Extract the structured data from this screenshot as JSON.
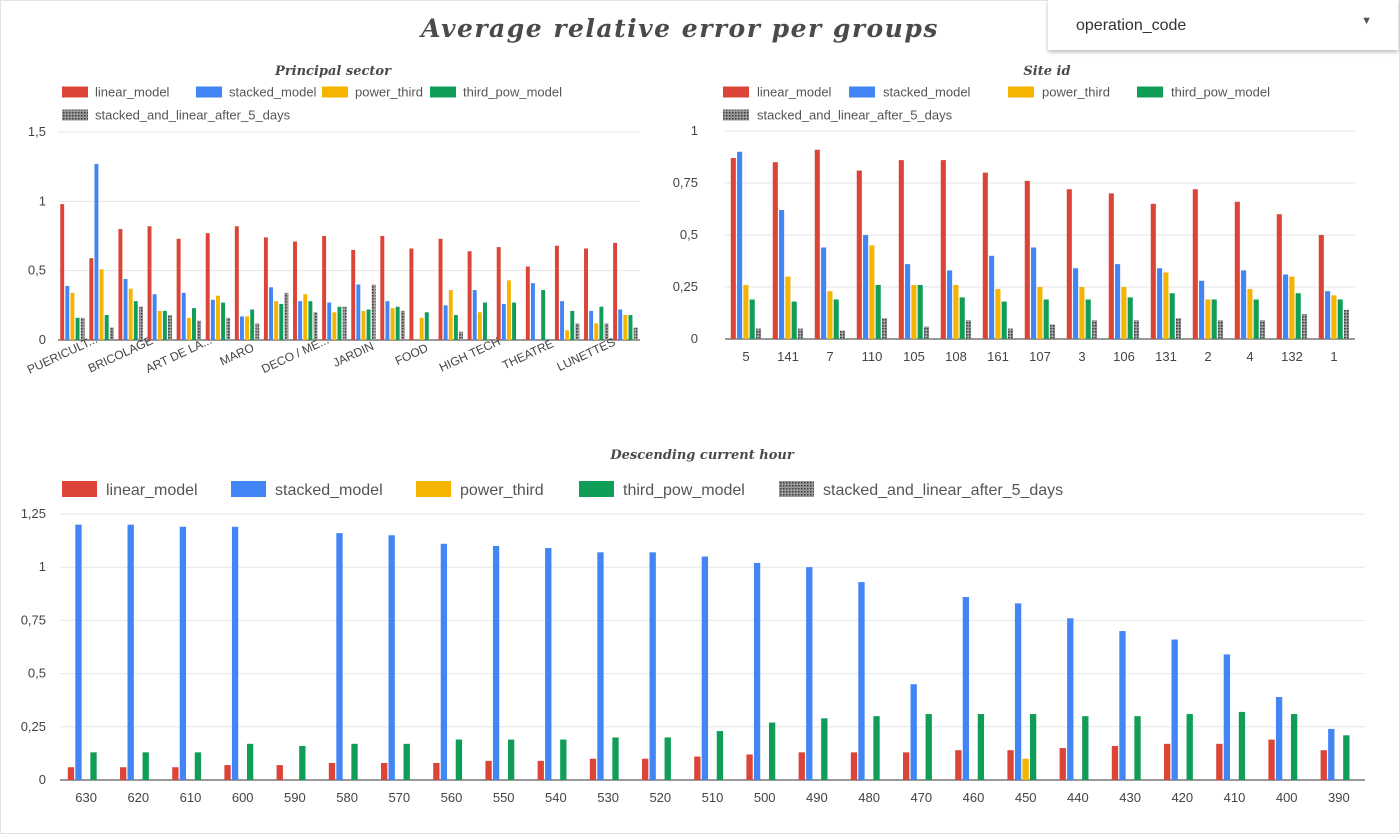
{
  "title": "Average relative error per groups",
  "dropdown": {
    "label": "operation_code",
    "icon": "caret-down-icon"
  },
  "colors": {
    "linear_model": "#db4437",
    "stacked_model": "#4285f4",
    "power_third": "#f4b400",
    "third_pow_model": "#0f9d58",
    "stacked_and_linear_after_5_days": "#666666"
  },
  "chart_data": [
    {
      "id": "sector",
      "type": "bar",
      "title": "Principal sector",
      "xlabel": "",
      "ylabel": "",
      "ylim": [
        0,
        1.5
      ],
      "yticks": [
        "0",
        "0,5",
        "1",
        "1,5"
      ],
      "legend_position": "top",
      "grid": true,
      "categories": [
        "PUERICULT...",
        "",
        "BRICOLAGE",
        "",
        "ART DE LA...",
        "",
        "MARO",
        "",
        "DECO / ME...",
        "",
        "JARDIN",
        "",
        "FOOD",
        "",
        "HIGH TECH",
        "",
        "THEATRE",
        "",
        "LUNETTES",
        ""
      ],
      "series": [
        {
          "name": "linear_model",
          "values": [
            0.98,
            0.59,
            0.8,
            0.82,
            0.73,
            0.77,
            0.82,
            0.74,
            0.71,
            0.75,
            0.65,
            0.75,
            0.66,
            0.73,
            0.64,
            0.67,
            0.53,
            0.68,
            0.66,
            0.7
          ]
        },
        {
          "name": "stacked_model",
          "values": [
            0.39,
            1.27,
            0.44,
            0.33,
            0.34,
            0.29,
            0.17,
            0.38,
            0.28,
            0.27,
            0.4,
            0.28,
            0.0,
            0.25,
            0.36,
            0.26,
            0.41,
            0.28,
            0.21,
            0.22
          ]
        },
        {
          "name": "power_third",
          "values": [
            0.34,
            0.51,
            0.37,
            0.21,
            0.16,
            0.32,
            0.17,
            0.28,
            0.33,
            0.2,
            0.21,
            0.23,
            0.16,
            0.36,
            0.2,
            0.43,
            0.0,
            0.07,
            0.12,
            0.18
          ]
        },
        {
          "name": "third_pow_model",
          "values": [
            0.16,
            0.18,
            0.28,
            0.21,
            0.23,
            0.27,
            0.22,
            0.26,
            0.28,
            0.24,
            0.22,
            0.24,
            0.2,
            0.18,
            0.27,
            0.27,
            0.36,
            0.21,
            0.24,
            0.18
          ]
        },
        {
          "name": "stacked_and_linear_after_5_days",
          "values": [
            0.16,
            0.09,
            0.24,
            0.18,
            0.14,
            0.16,
            0.12,
            0.34,
            0.2,
            0.24,
            0.4,
            0.21,
            0.0,
            0.06,
            0.0,
            0.0,
            0.0,
            0.12,
            0.12,
            0.09
          ]
        }
      ]
    },
    {
      "id": "site",
      "type": "bar",
      "title": "Site id",
      "xlabel": "",
      "ylabel": "",
      "ylim": [
        0,
        1
      ],
      "yticks": [
        "0",
        "0,25",
        "0,5",
        "0,75",
        "1"
      ],
      "legend_position": "top",
      "grid": true,
      "categories": [
        "5",
        "141",
        "7",
        "110",
        "105",
        "108",
        "161",
        "107",
        "3",
        "106",
        "131",
        "2",
        "4",
        "132",
        "1"
      ],
      "series": [
        {
          "name": "linear_model",
          "values": [
            0.87,
            0.85,
            0.91,
            0.81,
            0.86,
            0.86,
            0.8,
            0.76,
            0.72,
            0.7,
            0.65,
            0.72,
            0.66,
            0.6,
            0.5
          ]
        },
        {
          "name": "stacked_model",
          "values": [
            0.9,
            0.62,
            0.44,
            0.5,
            0.36,
            0.33,
            0.4,
            0.44,
            0.34,
            0.36,
            0.34,
            0.28,
            0.33,
            0.31,
            0.23
          ]
        },
        {
          "name": "power_third",
          "values": [
            0.26,
            0.3,
            0.23,
            0.45,
            0.26,
            0.26,
            0.24,
            0.25,
            0.25,
            0.25,
            0.32,
            0.19,
            0.24,
            0.3,
            0.21
          ]
        },
        {
          "name": "third_pow_model",
          "values": [
            0.19,
            0.18,
            0.19,
            0.26,
            0.26,
            0.2,
            0.18,
            0.19,
            0.19,
            0.2,
            0.22,
            0.19,
            0.19,
            0.22,
            0.19
          ]
        },
        {
          "name": "stacked_and_linear_after_5_days",
          "values": [
            0.05,
            0.05,
            0.04,
            0.1,
            0.06,
            0.09,
            0.05,
            0.07,
            0.09,
            0.09,
            0.1,
            0.09,
            0.09,
            0.12,
            0.14
          ]
        }
      ]
    },
    {
      "id": "hour",
      "type": "bar",
      "title": "Descending current hour",
      "xlabel": "",
      "ylabel": "",
      "ylim": [
        0,
        1.25
      ],
      "yticks": [
        "0",
        "0,25",
        "0,5",
        "0,75",
        "1",
        "1,25"
      ],
      "legend_position": "top",
      "grid": true,
      "categories": [
        "630",
        "620",
        "610",
        "600",
        "590",
        "580",
        "570",
        "560",
        "550",
        "540",
        "530",
        "520",
        "510",
        "500",
        "490",
        "480",
        "470",
        "460",
        "450",
        "440",
        "430",
        "420",
        "410",
        "400",
        "390"
      ],
      "series": [
        {
          "name": "linear_model",
          "values": [
            0.06,
            0.06,
            0.06,
            0.07,
            0.07,
            0.08,
            0.08,
            0.08,
            0.09,
            0.09,
            0.1,
            0.1,
            0.11,
            0.12,
            0.13,
            0.13,
            0.13,
            0.14,
            0.14,
            0.15,
            0.16,
            0.17,
            0.17,
            0.19,
            0.14
          ]
        },
        {
          "name": "stacked_model",
          "values": [
            1.2,
            1.2,
            1.19,
            1.19,
            0.0,
            1.16,
            1.15,
            1.11,
            1.1,
            1.09,
            1.07,
            1.07,
            1.05,
            1.02,
            1.0,
            0.93,
            0.45,
            0.86,
            0.83,
            0.76,
            0.7,
            0.66,
            0.59,
            0.39,
            0.24
          ]
        },
        {
          "name": "power_third",
          "values": [
            0,
            0,
            0,
            0,
            0,
            0,
            0,
            0,
            0,
            0,
            0,
            0,
            0,
            0,
            0,
            0,
            0,
            0,
            0.1,
            0,
            0,
            0,
            0,
            0,
            0
          ]
        },
        {
          "name": "third_pow_model",
          "values": [
            0.13,
            0.13,
            0.13,
            0.17,
            0.16,
            0.17,
            0.17,
            0.19,
            0.19,
            0.19,
            0.2,
            0.2,
            0.23,
            0.27,
            0.29,
            0.3,
            0.31,
            0.31,
            0.31,
            0.3,
            0.3,
            0.31,
            0.32,
            0.31,
            0.21
          ]
        },
        {
          "name": "stacked_and_linear_after_5_days",
          "values": [
            0,
            0,
            0,
            0,
            0,
            0,
            0,
            0,
            0,
            0,
            0,
            0,
            0,
            0,
            0,
            0,
            0,
            0,
            0,
            0,
            0,
            0,
            0,
            0,
            0
          ]
        }
      ]
    }
  ]
}
